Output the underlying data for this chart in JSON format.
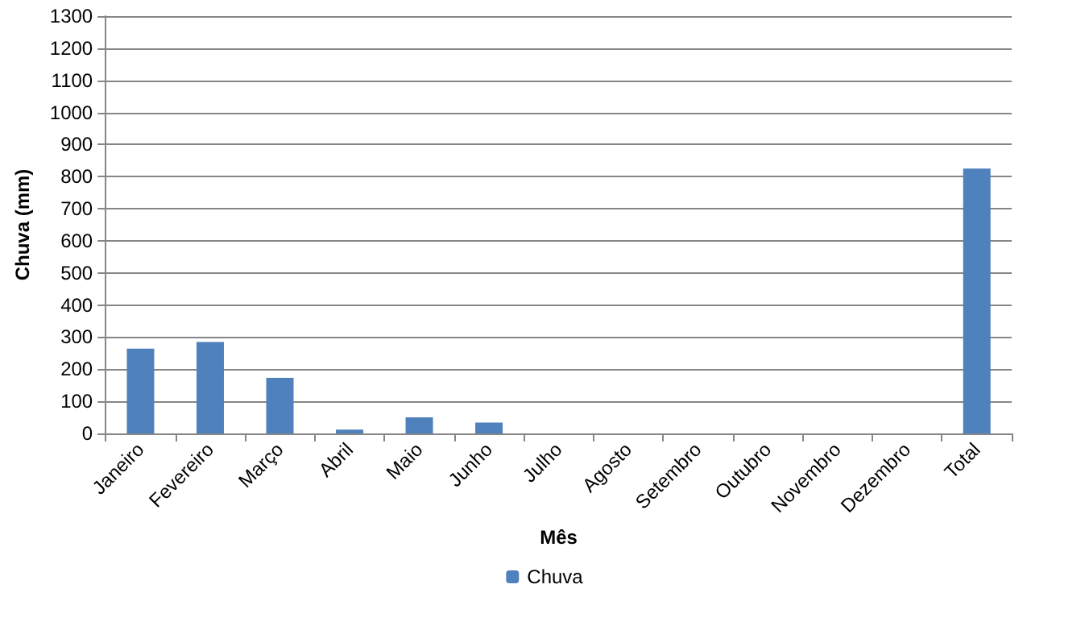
{
  "chart_data": {
    "type": "bar",
    "xlabel": "Mês",
    "ylabel": "Chuva (mm)",
    "categories": [
      "Janeiro",
      "Fevereiro",
      "Março",
      "Abril",
      "Maio",
      "Junho",
      "Julho",
      "Agosto",
      "Setembro",
      "Outubro",
      "Novembro",
      "Dezembro",
      "Total"
    ],
    "series": [
      {
        "name": "Chuva",
        "color": "#4f81bd",
        "values": [
          264,
          285,
          173,
          12,
          50,
          34,
          0,
          0,
          0,
          0,
          0,
          0,
          825
        ]
      }
    ],
    "ylim": [
      0,
      1300
    ],
    "yticks": [
      0,
      100,
      200,
      300,
      400,
      500,
      600,
      700,
      800,
      900,
      1000,
      1100,
      1200,
      1300
    ],
    "grid": "y",
    "legend": "bottom"
  }
}
